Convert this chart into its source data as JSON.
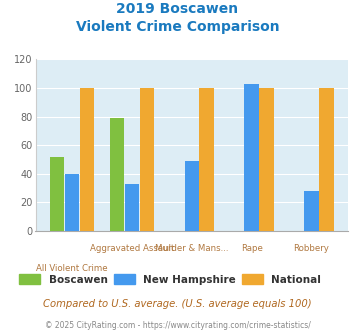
{
  "title_line1": "2019 Boscawen",
  "title_line2": "Violent Crime Comparison",
  "boscawen": [
    52,
    79,
    0,
    0,
    0
  ],
  "new_hampshire": [
    40,
    33,
    49,
    103,
    28
  ],
  "national": [
    100,
    100,
    100,
    100,
    100
  ],
  "color_boscawen": "#80c040",
  "color_nh": "#4499ee",
  "color_national": "#f0a830",
  "ylim": [
    0,
    120
  ],
  "yticks": [
    0,
    20,
    40,
    60,
    80,
    100,
    120
  ],
  "plot_bg": "#ddedf5",
  "title_color": "#1a7abf",
  "xtick_top_labels": [
    "",
    "Aggravated Assault",
    "Murder & Mans...",
    "Rape",
    "Robbery"
  ],
  "xtick_bot_labels": [
    "All Violent Crime",
    "",
    "",
    "",
    ""
  ],
  "legend_labels": [
    "Boscawen",
    "New Hampshire",
    "National"
  ],
  "footer_text": "Compared to U.S. average. (U.S. average equals 100)",
  "copyright_text": "© 2025 CityRating.com - https://www.cityrating.com/crime-statistics/",
  "footer_color": "#b06820",
  "copyright_color": "#888888",
  "xtick_color": "#b07840",
  "ytick_color": "#666666",
  "grid_color": "#ffffff"
}
